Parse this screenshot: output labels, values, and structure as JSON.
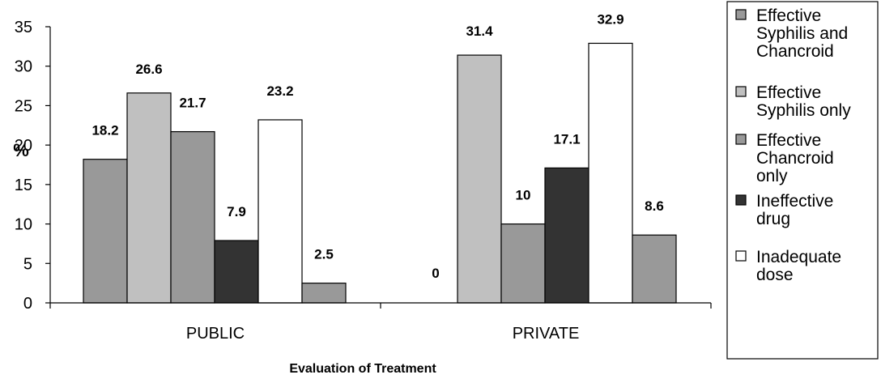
{
  "chart_data": {
    "type": "bar",
    "xlabel": "Evaluation of Treatment",
    "ylabel": "%",
    "ylim": [
      0,
      35
    ],
    "yticks": [
      0,
      5,
      10,
      15,
      20,
      25,
      30,
      35
    ],
    "categories": [
      "PUBLIC",
      "PRIVATE"
    ],
    "grid": false,
    "legend_position": "right",
    "series": [
      {
        "name": "Effective Syphilis and Chancroid",
        "legend_lines": [
          "Effective",
          "Syphilis and",
          "Chancroid"
        ],
        "color": "#999999",
        "values": [
          18.2,
          0
        ],
        "labels": [
          "18.2",
          "0"
        ]
      },
      {
        "name": "Effective Syphilis only",
        "legend_lines": [
          "Effective",
          "Syphilis only"
        ],
        "color": "#c0c0c0",
        "values": [
          26.6,
          31.4
        ],
        "labels": [
          "26.6",
          "31.4"
        ]
      },
      {
        "name": "Effective Chancroid only",
        "legend_lines": [
          "Effective",
          "Chancroid",
          "only"
        ],
        "color": "#999999",
        "values": [
          21.7,
          10
        ],
        "labels": [
          "21.7",
          "10"
        ]
      },
      {
        "name": "Ineffective drug",
        "legend_lines": [
          "Ineffective",
          "drug"
        ],
        "color": "#333333",
        "values": [
          7.9,
          17.1
        ],
        "labels": [
          "7.9",
          "17.1"
        ]
      },
      {
        "name": "Inadequate dose",
        "legend_lines": [
          "Inadequate",
          "dose"
        ],
        "color": "#ffffff",
        "values": [
          23.2,
          32.9
        ],
        "labels": [
          "23.2",
          "32.9"
        ]
      },
      {
        "name": "",
        "legend_lines": [],
        "color": "#999999",
        "values": [
          2.5,
          8.6
        ],
        "labels": [
          "2.5",
          "8.6"
        ]
      }
    ]
  }
}
